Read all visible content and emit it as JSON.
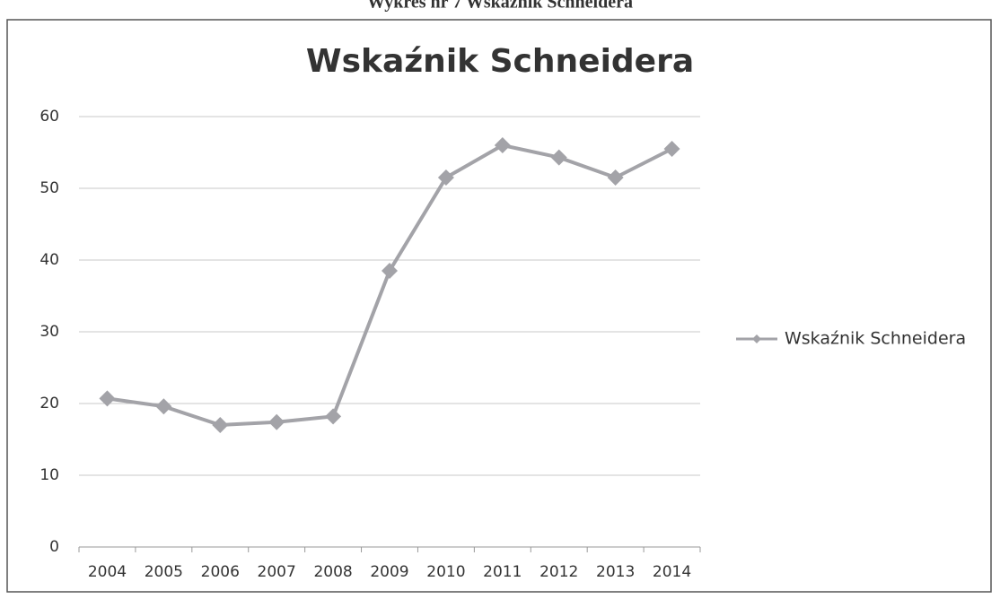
{
  "caption": "Wykres nr 7 Wskaźnik Schneidera",
  "chart_data": {
    "type": "line",
    "title": "Wskaźnik Schneidera",
    "categories": [
      "2004",
      "2005",
      "2006",
      "2007",
      "2008",
      "2009",
      "2010",
      "2011",
      "2012",
      "2013",
      "2014"
    ],
    "series": [
      {
        "name": "Wskaźnik Schneidera",
        "color": "#a3a3a8",
        "values": [
          20.7,
          19.6,
          17,
          17.4,
          18.2,
          38.5,
          51.5,
          56,
          54.3,
          51.5,
          55.5
        ]
      }
    ],
    "ylim": [
      0,
      60
    ],
    "yticks": [
      0,
      10,
      20,
      30,
      40,
      50,
      60
    ],
    "grid": true,
    "legend": "right"
  }
}
